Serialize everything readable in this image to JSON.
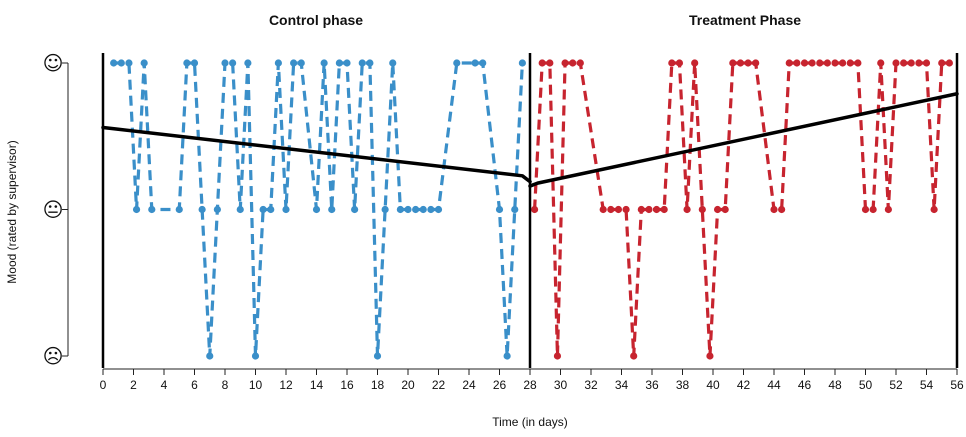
{
  "chart_data": {
    "type": "line",
    "xlabel": "Time (in days)",
    "ylabel": "Mood (rated by supervisor)",
    "xlim": [
      0,
      56
    ],
    "ylim": [
      1,
      3
    ],
    "xticks": [
      0,
      2,
      4,
      6,
      8,
      10,
      12,
      14,
      16,
      18,
      20,
      22,
      24,
      26,
      28,
      30,
      32,
      34,
      36,
      38,
      40,
      42,
      44,
      46,
      48,
      50,
      52,
      54,
      56
    ],
    "yticks": [
      {
        "value": 3,
        "label": "☺",
        "icon": "happy-face-icon"
      },
      {
        "value": 2,
        "label": "😐",
        "icon": "neutral-face-icon"
      },
      {
        "value": 1,
        "label": "☹",
        "icon": "sad-face-icon"
      }
    ],
    "grid": false,
    "phase_change_x": 28,
    "phases": [
      {
        "title": "Control phase",
        "color": "#3a8fc9",
        "line_style": "dashed",
        "x": [
          0.7,
          1.2,
          1.7,
          2.2,
          2.7,
          3.2,
          5.0,
          5.5,
          6.0,
          6.5,
          7.0,
          7.5,
          8.0,
          8.5,
          9.0,
          9.5,
          10.0,
          10.5,
          11.0,
          11.5,
          12.0,
          12.5,
          13.0,
          14.0,
          14.5,
          15.0,
          15.5,
          16.0,
          16.5,
          17.0,
          17.5,
          18.0,
          18.5,
          19.0,
          19.5,
          20.0,
          20.5,
          21.0,
          21.5,
          22.0,
          23.2,
          24.4,
          24.9,
          26.0,
          26.5,
          27.0,
          27.5
        ],
        "y": [
          3,
          3,
          3,
          2,
          3,
          2,
          2,
          3,
          3,
          2,
          1,
          2,
          3,
          3,
          2,
          3,
          1,
          2,
          2,
          3,
          2,
          3,
          3,
          2,
          3,
          2,
          3,
          3,
          2,
          3,
          3,
          1,
          2,
          3,
          2,
          2,
          2,
          2,
          2,
          2,
          3,
          3,
          3,
          2,
          1,
          2,
          3
        ]
      },
      {
        "title": "Treatment Phase",
        "color": "#c7242f",
        "line_style": "dashed",
        "x": [
          28.3,
          28.8,
          29.3,
          29.8,
          30.3,
          30.8,
          31.3,
          32.8,
          33.3,
          33.8,
          34.3,
          34.8,
          35.3,
          35.8,
          36.3,
          36.8,
          37.3,
          37.8,
          38.3,
          38.8,
          39.3,
          39.8,
          40.3,
          40.8,
          41.3,
          41.8,
          42.3,
          42.8,
          44.0,
          44.5,
          45.0,
          45.5,
          46.0,
          46.5,
          47.0,
          47.5,
          48.0,
          48.5,
          49.0,
          49.5,
          50.0,
          50.5,
          51.0,
          51.5,
          52.0,
          52.5,
          53.0,
          53.5,
          54.0,
          54.5,
          55.0,
          55.5
        ],
        "y": [
          2,
          3,
          3,
          1,
          3,
          3,
          3,
          2,
          2,
          2,
          2,
          1,
          2,
          2,
          2,
          2,
          3,
          3,
          2,
          3,
          2,
          1,
          2,
          2,
          3,
          3,
          3,
          3,
          2,
          2,
          3,
          3,
          3,
          3,
          3,
          3,
          3,
          3,
          3,
          3,
          2,
          2,
          3,
          2,
          3,
          3,
          3,
          3,
          3,
          2,
          3,
          3
        ]
      }
    ],
    "trend_lines": [
      {
        "phase": "Control phase",
        "color": "#000000",
        "x": [
          0,
          27.5,
          28
        ],
        "y": [
          2.56,
          2.23,
          2.19
        ]
      },
      {
        "phase": "Treatment Phase",
        "color": "#000000",
        "x": [
          28,
          28.5,
          56
        ],
        "y": [
          2.16,
          2.18,
          2.79
        ]
      }
    ]
  }
}
